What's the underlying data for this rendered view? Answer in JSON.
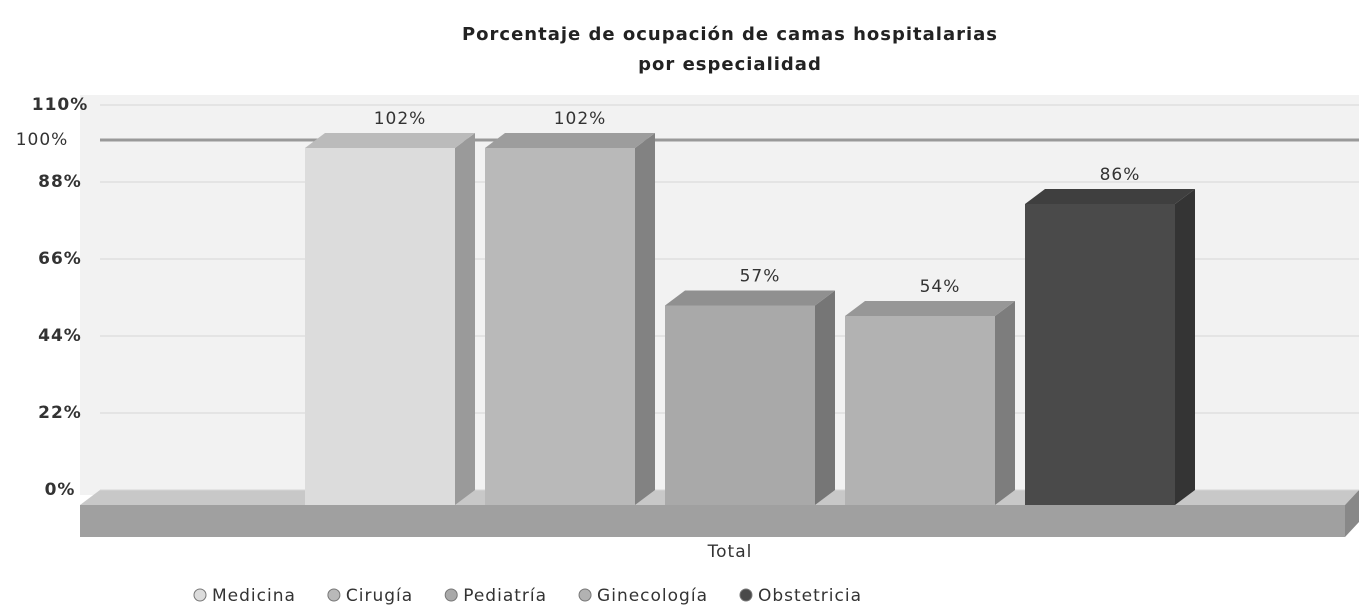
{
  "chart_data": {
    "type": "bar3d",
    "title": [
      "Porcentaje de ocupación de camas hospitalarias",
      "por especialidad"
    ],
    "categories": [
      "Total"
    ],
    "x_label": "Total",
    "series": [
      {
        "name": "Medicina",
        "color": "#dcdcdc",
        "values": [
          102
        ],
        "value_labels": [
          "102%"
        ]
      },
      {
        "name": "Cirugía",
        "color": "#b9b9b9",
        "values": [
          102
        ],
        "value_labels": [
          "102%"
        ]
      },
      {
        "name": "Pediatría",
        "color": "#a9a9a9",
        "values": [
          57
        ],
        "value_labels": [
          "57%"
        ]
      },
      {
        "name": "Ginecología",
        "color": "#b2b2b2",
        "values": [
          54
        ],
        "value_labels": [
          "54%"
        ]
      },
      {
        "name": "Obstetricia",
        "color": "#4a4a4a",
        "values": [
          86
        ],
        "value_labels": [
          "86%"
        ]
      }
    ],
    "ylim": [
      0,
      110
    ],
    "yticks": [
      {
        "value": 0,
        "label": "0%"
      },
      {
        "value": 22,
        "label": "22%"
      },
      {
        "value": 44,
        "label": "44%"
      },
      {
        "value": 66,
        "label": "66%"
      },
      {
        "value": 88,
        "label": "88%"
      },
      {
        "value": 110,
        "label": "110%"
      }
    ],
    "reference_line": {
      "value": 100,
      "label": "100%"
    },
    "grid": true,
    "legend": "bottom"
  }
}
